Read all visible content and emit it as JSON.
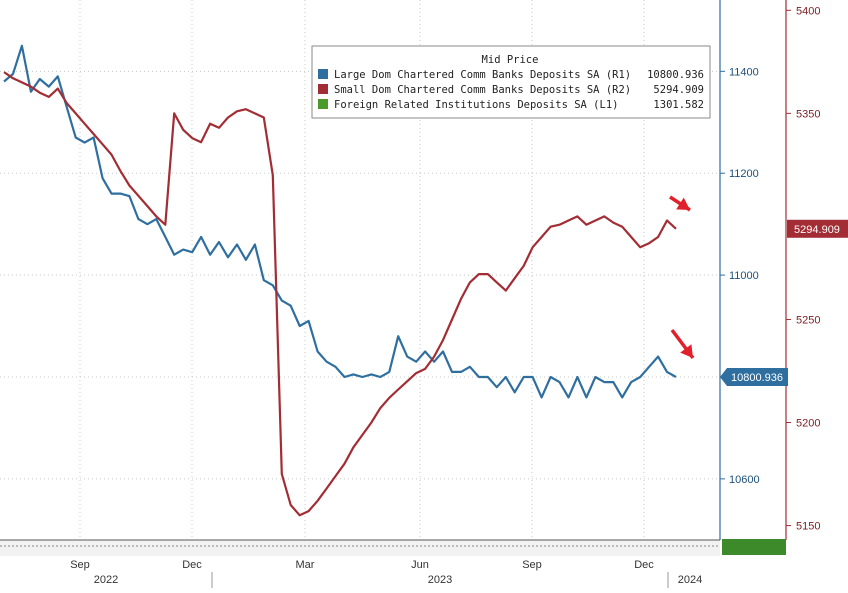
{
  "chart_data": {
    "type": "line",
    "title": "",
    "legend": {
      "title": "Mid Price",
      "placement": "top-right",
      "entries": [
        {
          "label": "Large Dom Chartered Comm Banks Deposits SA  (R1)",
          "value": "10800.936",
          "color": "#2f6f9f"
        },
        {
          "label": "Small Dom Chartered Comm Banks Deposits SA  (R2)",
          "value": "5294.909",
          "color": "#a32d34"
        },
        {
          "label": "Foreign Related Institutions Deposits SA  (L1)",
          "value": "1301.582",
          "color": "#4a9a2c"
        }
      ]
    },
    "x_ticks": {
      "months": [
        "Sep",
        "Dec",
        "Mar",
        "Jun",
        "Sep",
        "Dec"
      ],
      "years": [
        "2022",
        "2023",
        "2024"
      ]
    },
    "axes": {
      "r1": {
        "ylim": [
          10480,
          11540
        ],
        "ticks": [
          "11400",
          "11200",
          "11000",
          "10600"
        ]
      },
      "r2": {
        "ylim": [
          5143,
          5405
        ],
        "ticks": [
          "5400",
          "5350",
          "5250",
          "5200",
          "5150"
        ]
      }
    },
    "last_value_labels": {
      "r1": "10800.936",
      "r2": "5294.909"
    },
    "series": [
      {
        "name": "Large Dom Chartered Comm Banks Deposits SA",
        "axis": "r1",
        "color": "#2f6f9f",
        "x": [
          0,
          1,
          2,
          3,
          4,
          5,
          6,
          7,
          8,
          9,
          10,
          11,
          12,
          13,
          14,
          15,
          16,
          17,
          18,
          19,
          20,
          21,
          22,
          23,
          24,
          25,
          26,
          27,
          28,
          29,
          30,
          31,
          32,
          33,
          34,
          35,
          36,
          37,
          38,
          39,
          40,
          41,
          42,
          43,
          44,
          45,
          46,
          47,
          48,
          49,
          50,
          51,
          52,
          53,
          54,
          55,
          56,
          57,
          58,
          59,
          60,
          61,
          62,
          63,
          64,
          65,
          66,
          67,
          68,
          69,
          70,
          71,
          72,
          73,
          74,
          75
        ],
        "values": [
          11380,
          11395,
          11450,
          11360,
          11385,
          11370,
          11390,
          11330,
          11270,
          11260,
          11270,
          11190,
          11160,
          11160,
          11155,
          11110,
          11100,
          11110,
          11075,
          11040,
          11050,
          11045,
          11075,
          11040,
          11065,
          11035,
          11060,
          11030,
          11060,
          10990,
          10980,
          10950,
          10940,
          10900,
          10910,
          10850,
          10830,
          10820,
          10800,
          10805,
          10800,
          10805,
          10800,
          10810,
          10880,
          10840,
          10830,
          10850,
          10830,
          10850,
          10810,
          10810,
          10820,
          10800,
          10800,
          10780,
          10800,
          10770,
          10800,
          10800,
          10760,
          10800,
          10790,
          10760,
          10800,
          10760,
          10800,
          10790,
          10790,
          10760,
          10790,
          10800,
          10820,
          10840,
          10810,
          10800
        ]
      },
      {
        "name": "Small Dom Chartered Comm Banks Deposits SA",
        "axis": "r2",
        "color": "#a32d34",
        "x": [
          0,
          1,
          2,
          3,
          4,
          5,
          6,
          7,
          8,
          9,
          10,
          11,
          12,
          13,
          14,
          15,
          16,
          17,
          18,
          19,
          20,
          21,
          22,
          23,
          24,
          25,
          26,
          27,
          28,
          29,
          30,
          31,
          32,
          33,
          34,
          35,
          36,
          37,
          38,
          39,
          40,
          41,
          42,
          43,
          44,
          45,
          46,
          47,
          48,
          49,
          50,
          51,
          52,
          53,
          54,
          55,
          56,
          57,
          58,
          59,
          60,
          61,
          62,
          63,
          64,
          65,
          66,
          67,
          68,
          69,
          70,
          71,
          72,
          73,
          74,
          75
        ],
        "values": [
          5370,
          5367,
          5365,
          5363,
          5360,
          5358,
          5362,
          5355,
          5350,
          5345,
          5340,
          5335,
          5330,
          5322,
          5315,
          5310,
          5305,
          5300,
          5296,
          5350,
          5342,
          5338,
          5336,
          5345,
          5343,
          5348,
          5351,
          5352,
          5350,
          5348,
          5320,
          5175,
          5160,
          5155,
          5157,
          5162,
          5168,
          5174,
          5180,
          5188,
          5194,
          5200,
          5207,
          5212,
          5216,
          5220,
          5224,
          5226,
          5232,
          5240,
          5250,
          5260,
          5268,
          5272,
          5272,
          5268,
          5264,
          5270,
          5276,
          5285,
          5290,
          5295,
          5296,
          5298,
          5300,
          5296,
          5298,
          5300,
          5297,
          5295,
          5290,
          5285,
          5287,
          5290,
          5298,
          5294
        ]
      }
    ]
  }
}
